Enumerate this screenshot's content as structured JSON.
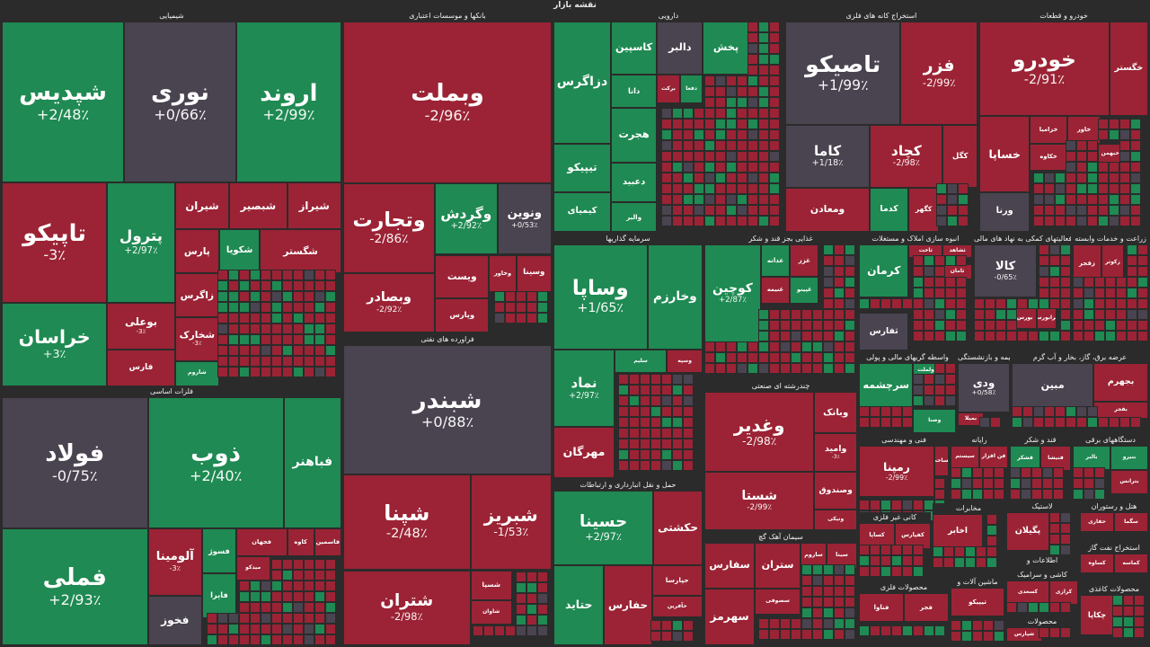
{
  "page_title": "نقشه بازار",
  "colors": {
    "green": "#1f8a53",
    "red": "#9b2335",
    "neutral": "#4a4350"
  },
  "chart_data": {
    "type": "treemap",
    "title": "نقشه بازار",
    "sectors": [
      {
        "name": "شیمیایی",
        "tiles": [
          {
            "n": "شپدیس",
            "p": "+2/48٪",
            "c": "g"
          },
          {
            "n": "نوری",
            "p": "+0/66٪",
            "c": "n"
          },
          {
            "n": "اروند",
            "p": "+2/99٪",
            "c": "g"
          },
          {
            "n": "تاپیکو",
            "p": "-3٪",
            "c": "r"
          },
          {
            "n": "پترول",
            "p": "+2/97٪",
            "c": "g"
          },
          {
            "n": "شیران",
            "p": "",
            "c": "r"
          },
          {
            "n": "شبصیر",
            "p": "",
            "c": "r"
          },
          {
            "n": "شیراز",
            "p": "",
            "c": "r"
          },
          {
            "n": "پارس",
            "p": "",
            "c": "r"
          },
          {
            "n": "شکویا",
            "p": "",
            "c": "g"
          },
          {
            "n": "شگستر",
            "p": "",
            "c": "r"
          },
          {
            "n": "زاگرس",
            "p": "",
            "c": "r"
          },
          {
            "n": "بوعلی",
            "p": "-3٪",
            "c": "r"
          },
          {
            "n": "شخارک",
            "p": "-3٪",
            "c": "r"
          },
          {
            "n": "خراسان",
            "p": "+3٪",
            "c": "g"
          },
          {
            "n": "فارس",
            "p": "",
            "c": "r"
          },
          {
            "n": "شاروم",
            "p": "",
            "c": "g"
          }
        ]
      },
      {
        "name": "فلزات اساسی",
        "tiles": [
          {
            "n": "فولاد",
            "p": "-0/75٪",
            "c": "n"
          },
          {
            "n": "ذوب",
            "p": "+2/40٪",
            "c": "g"
          },
          {
            "n": "فباهنر",
            "p": "",
            "c": "g"
          },
          {
            "n": "فملی",
            "p": "+2/93٪",
            "c": "g"
          },
          {
            "n": "آلومینا",
            "p": "-3٪",
            "c": "r"
          },
          {
            "n": "فخوز",
            "p": "",
            "c": "n"
          },
          {
            "n": "فسوژ",
            "p": "",
            "c": "g"
          },
          {
            "n": "فایرا",
            "p": "",
            "c": "g"
          },
          {
            "n": "فجهان",
            "p": "",
            "c": "r"
          },
          {
            "n": "کاوه",
            "p": "",
            "c": "r"
          },
          {
            "n": "فاسمین",
            "p": "",
            "c": "r"
          },
          {
            "n": "میدکو",
            "p": "",
            "c": "r"
          }
        ]
      },
      {
        "name": "بانکها و موسسات اعتباری",
        "tiles": [
          {
            "n": "وبملت",
            "p": "-2/96٪",
            "c": "r"
          },
          {
            "n": "وتجارت",
            "p": "-2/86٪",
            "c": "r"
          },
          {
            "n": "وگردش",
            "p": "+2/92٪",
            "c": "g"
          },
          {
            "n": "ونوین",
            "p": "+0/53٪",
            "c": "n"
          },
          {
            "n": "وبصادر",
            "p": "-2/92٪",
            "c": "r"
          },
          {
            "n": "ویست",
            "p": "",
            "c": "r"
          },
          {
            "n": "وخاور",
            "p": "",
            "c": "r"
          },
          {
            "n": "وسینا",
            "p": "",
            "c": "r"
          },
          {
            "n": "وپارس",
            "p": "",
            "c": "r"
          }
        ]
      },
      {
        "name": "فراورده های نفتی",
        "tiles": [
          {
            "n": "شبندر",
            "p": "+0/88٪",
            "c": "n"
          },
          {
            "n": "شپنا",
            "p": "-2/48٪",
            "c": "r"
          },
          {
            "n": "شبریز",
            "p": "-1/53٪",
            "c": "r"
          },
          {
            "n": "شتران",
            "p": "-2/98٪",
            "c": "r"
          },
          {
            "n": "شسپا",
            "p": "",
            "c": "r"
          },
          {
            "n": "شاوان",
            "p": "",
            "c": "r"
          }
        ]
      },
      {
        "name": "دارویی",
        "tiles": [
          {
            "n": "دزاگرس",
            "p": "",
            "c": "g"
          },
          {
            "n": "کاسپین",
            "p": "",
            "c": "g"
          },
          {
            "n": "دالبر",
            "p": "",
            "c": "n"
          },
          {
            "n": "پخش",
            "p": "",
            "c": "g"
          },
          {
            "n": "دانا",
            "p": "",
            "c": "g"
          },
          {
            "n": "تیپیکو",
            "p": "",
            "c": "g"
          },
          {
            "n": "هجرت",
            "p": "",
            "c": "g"
          },
          {
            "n": "دعبید",
            "p": "",
            "c": "g"
          },
          {
            "n": "کیمیای",
            "p": "",
            "c": "g"
          },
          {
            "n": "والبر",
            "p": "",
            "c": "g"
          },
          {
            "n": "برکت",
            "p": "",
            "c": "r"
          },
          {
            "n": "دفعا",
            "p": "",
            "c": "g"
          }
        ]
      },
      {
        "name": "استخراج کانه های فلزی",
        "tiles": [
          {
            "n": "تاصیکو",
            "p": "+1/99٪",
            "c": "n"
          },
          {
            "n": "فزر",
            "p": "-2/99٪",
            "c": "r"
          },
          {
            "n": "کاما",
            "p": "+1/18٪",
            "c": "n"
          },
          {
            "n": "کچاد",
            "p": "-2/98٪",
            "c": "r"
          },
          {
            "n": "کگل",
            "p": "",
            "c": "r"
          },
          {
            "n": "ومعادن",
            "p": "",
            "c": "r"
          },
          {
            "n": "کدما",
            "p": "",
            "c": "g"
          },
          {
            "n": "کگهر",
            "p": "",
            "c": "r"
          }
        ]
      },
      {
        "name": "خودرو و قطعات",
        "tiles": [
          {
            "n": "خودرو",
            "p": "-2/91٪",
            "c": "r"
          },
          {
            "n": "خگستر",
            "p": "",
            "c": "r"
          },
          {
            "n": "خساپا",
            "p": "",
            "c": "r"
          },
          {
            "n": "خزامیا",
            "p": "",
            "c": "r"
          },
          {
            "n": "خاور",
            "p": "",
            "c": "r"
          },
          {
            "n": "ورنا",
            "p": "",
            "c": "n"
          },
          {
            "n": "خبهمن",
            "p": "",
            "c": "r"
          },
          {
            "n": "خکاوه",
            "p": "",
            "c": "r"
          }
        ]
      },
      {
        "name": "سرمایه گذاریها",
        "tiles": [
          {
            "n": "وساپا",
            "p": "+1/65٪",
            "c": "g"
          },
          {
            "n": "وخارزم",
            "p": "",
            "c": "g"
          },
          {
            "n": "نماد",
            "p": "+2/97٪",
            "c": "g"
          },
          {
            "n": "سلیم",
            "p": "",
            "c": "g"
          },
          {
            "n": "وسپه",
            "p": "",
            "c": "r"
          },
          {
            "n": "مهرگان",
            "p": "",
            "c": "r"
          }
        ]
      },
      {
        "name": "غذایی بجز قند و شکر",
        "tiles": [
          {
            "n": "کوچین",
            "p": "+2/87٪",
            "c": "g"
          },
          {
            "n": "غدانه",
            "p": "",
            "c": "g"
          },
          {
            "n": "غزر",
            "p": "",
            "c": "r"
          },
          {
            "n": "غنیمه",
            "p": "",
            "c": "r"
          },
          {
            "n": "غپینو",
            "p": "",
            "c": "g"
          }
        ]
      },
      {
        "name": "انبوه سازی املاک و مستغلات",
        "tiles": [
          {
            "n": "کرمان",
            "p": "",
            "c": "g"
          },
          {
            "n": "ثاخت",
            "p": "",
            "c": "r"
          },
          {
            "n": "ثشاهد",
            "p": "",
            "c": "r"
          },
          {
            "n": "ثامان",
            "p": "",
            "c": "r"
          },
          {
            "n": "ثفارس",
            "p": "",
            "c": "n"
          }
        ]
      },
      {
        "name": "فعالیتهای کمکی به نهاد های مالی",
        "tiles": [
          {
            "n": "کالا",
            "p": "-0/65٪",
            "c": "n"
          },
          {
            "n": "فرابورس",
            "p": "",
            "c": "r"
          },
          {
            "n": "بورس",
            "p": "",
            "c": "r"
          }
        ]
      },
      {
        "name": "زراعت و خدمات وابسته",
        "tiles": [
          {
            "n": "زفجر",
            "p": "",
            "c": "r"
          },
          {
            "n": "زکوثر",
            "p": "",
            "c": "r"
          }
        ]
      },
      {
        "name": "حمل و نقل انبارداری و ارتباطات",
        "tiles": [
          {
            "n": "حسینا",
            "p": "+2/97٪",
            "c": "g"
          },
          {
            "n": "حکشتی",
            "p": "",
            "c": "r"
          },
          {
            "n": "حتاید",
            "p": "",
            "c": "g"
          },
          {
            "n": "حفارس",
            "p": "",
            "c": "r"
          },
          {
            "n": "حپارسا",
            "p": "",
            "c": "r"
          },
          {
            "n": "حآفرین",
            "p": "",
            "c": "r"
          }
        ]
      },
      {
        "name": "چندرشته ای صنعتی",
        "tiles": [
          {
            "n": "وغدیر",
            "p": "-2/98٪",
            "c": "r"
          },
          {
            "n": "وبانک",
            "p": "",
            "c": "r"
          },
          {
            "n": "شستا",
            "p": "-2/99٪",
            "c": "r"
          },
          {
            "n": "وامید",
            "p": "-3٪",
            "c": "r"
          },
          {
            "n": "وصندوق",
            "p": "",
            "c": "r"
          },
          {
            "n": "ونیکی",
            "p": "",
            "c": "r"
          }
        ]
      },
      {
        "name": "سیمان آهک گچ",
        "tiles": [
          {
            "n": "سفارس",
            "p": "",
            "c": "r"
          },
          {
            "n": "ستران",
            "p": "",
            "c": "r"
          },
          {
            "n": "سهرمز",
            "p": "",
            "c": "r"
          },
          {
            "n": "سصوفی",
            "p": "",
            "c": "r"
          },
          {
            "n": "ساروم",
            "p": "",
            "c": "r"
          },
          {
            "n": "سیتا",
            "p": "",
            "c": "r"
          }
        ]
      },
      {
        "name": "فنی و مهندسی",
        "tiles": [
          {
            "n": "رمپنا",
            "p": "-2/99٪",
            "c": "r"
          },
          {
            "n": "وساخت",
            "p": "",
            "c": "r"
          }
        ]
      },
      {
        "name": "واسطه گریهای مالی و پولی",
        "tiles": [
          {
            "n": "سرچشمه",
            "p": "",
            "c": "g"
          },
          {
            "n": "ولملت",
            "p": "",
            "c": "g"
          },
          {
            "n": "وصنا",
            "p": "",
            "c": "g"
          }
        ]
      },
      {
        "name": "بیمه و بازنشستگی",
        "tiles": [
          {
            "n": "ودی",
            "p": "+0/58٪",
            "c": "n"
          },
          {
            "n": "بمیلا",
            "p": "",
            "c": "r"
          }
        ]
      },
      {
        "name": "عرضه برق، گاز، بخار و آب گرم",
        "tiles": [
          {
            "n": "مبین",
            "p": "",
            "c": "n"
          },
          {
            "n": "بجهرم",
            "p": "",
            "c": "r"
          },
          {
            "n": "بفجر",
            "p": "",
            "c": "r"
          }
        ]
      },
      {
        "name": "رایانه",
        "tiles": [
          {
            "n": "سیستم",
            "p": "",
            "c": "r"
          },
          {
            "n": "فن افزار",
            "p": "",
            "c": "r"
          }
        ]
      },
      {
        "name": "قند و شکر",
        "tiles": [
          {
            "n": "قشکر",
            "p": "",
            "c": "g"
          },
          {
            "n": "قنیشا",
            "p": "",
            "c": "r"
          }
        ]
      },
      {
        "name": "دستگاههای برقی",
        "tiles": [
          {
            "n": "بالبر",
            "p": "",
            "c": "g"
          },
          {
            "n": "بنیرو",
            "p": "",
            "c": "g"
          },
          {
            "n": "بترانس",
            "p": "",
            "c": "r"
          }
        ]
      },
      {
        "name": "کانی غیر فلزی",
        "tiles": [
          {
            "n": "کساپا",
            "p": "",
            "c": "r"
          },
          {
            "n": "کفپارس",
            "p": "",
            "c": "r"
          }
        ]
      },
      {
        "name": "مخابرات",
        "tiles": [
          {
            "n": "اخابر",
            "p": "",
            "c": "r"
          }
        ]
      },
      {
        "name": "لاستیک",
        "tiles": [
          {
            "n": "پگیلان",
            "p": "",
            "c": "r"
          }
        ]
      },
      {
        "name": "هتل و رستوران",
        "tiles": [
          {
            "n": "حفاری",
            "p": "",
            "c": "r"
          },
          {
            "n": "سگما",
            "p": "",
            "c": "r"
          }
        ]
      },
      {
        "name": "استخراج نفت گاز",
        "tiles": [
          {
            "n": "کساوه",
            "p": "",
            "c": "r"
          },
          {
            "n": "کماسه",
            "p": "",
            "c": "r"
          }
        ]
      },
      {
        "name": "محصولات فلزی",
        "tiles": [
          {
            "n": "فناوا",
            "p": "",
            "c": "r"
          },
          {
            "n": "فجر",
            "p": "",
            "c": "r"
          }
        ]
      },
      {
        "name": "ماشین آلات و",
        "tiles": [
          {
            "n": "تیپیکو",
            "p": "",
            "c": "r"
          }
        ]
      },
      {
        "name": "کاشی و سرامیک",
        "tiles": [
          {
            "n": "کسعدی",
            "p": "",
            "c": "r"
          },
          {
            "n": "کرازی",
            "p": "",
            "c": "r"
          }
        ]
      },
      {
        "name": "محصولات کاغذی",
        "tiles": [
          {
            "n": "چکاپا",
            "p": "",
            "c": "r"
          }
        ]
      },
      {
        "name": "اطلاعات و",
        "tiles": [
          {
            "n": "اپرداز",
            "p": "",
            "c": "g"
          }
        ]
      },
      {
        "name": "محصولات",
        "tiles": [
          {
            "n": "شپارس",
            "p": "",
            "c": "r"
          }
        ]
      }
    ]
  }
}
